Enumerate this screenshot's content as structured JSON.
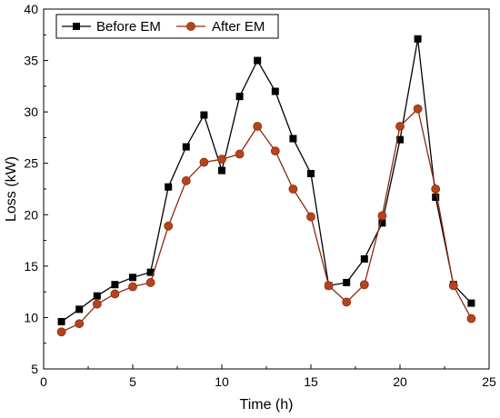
{
  "chart_data": {
    "type": "line",
    "title": "",
    "xlabel": "Time (h)",
    "ylabel": "Loss (kW)",
    "xlim": [
      0,
      25
    ],
    "ylim": [
      5,
      40
    ],
    "xticks": [
      0,
      5,
      10,
      15,
      20,
      25
    ],
    "yticks": [
      5,
      10,
      15,
      20,
      25,
      30,
      35,
      40
    ],
    "grid": false,
    "legend_position": "top-left",
    "x": [
      1,
      2,
      3,
      4,
      5,
      6,
      7,
      8,
      9,
      10,
      11,
      12,
      13,
      14,
      15,
      16,
      17,
      18,
      19,
      20,
      21,
      22,
      23,
      24
    ],
    "series": [
      {
        "name": "Before EM",
        "color": "#000000",
        "marker": "square",
        "values": [
          9.6,
          10.8,
          12.1,
          13.2,
          13.9,
          14.4,
          22.7,
          26.6,
          29.7,
          24.3,
          31.5,
          35.0,
          32.0,
          27.4,
          24.0,
          13.1,
          13.4,
          15.7,
          19.2,
          27.3,
          37.1,
          21.7,
          13.2,
          11.4
        ]
      },
      {
        "name": "After EM",
        "color": "#8b2a0e",
        "marker": "circle",
        "values": [
          8.6,
          9.4,
          11.3,
          12.3,
          13.0,
          13.4,
          18.9,
          23.3,
          25.1,
          25.4,
          25.9,
          28.6,
          26.2,
          22.5,
          19.8,
          13.1,
          11.5,
          13.2,
          19.9,
          28.6,
          30.3,
          22.5,
          13.1,
          9.9
        ]
      }
    ]
  }
}
